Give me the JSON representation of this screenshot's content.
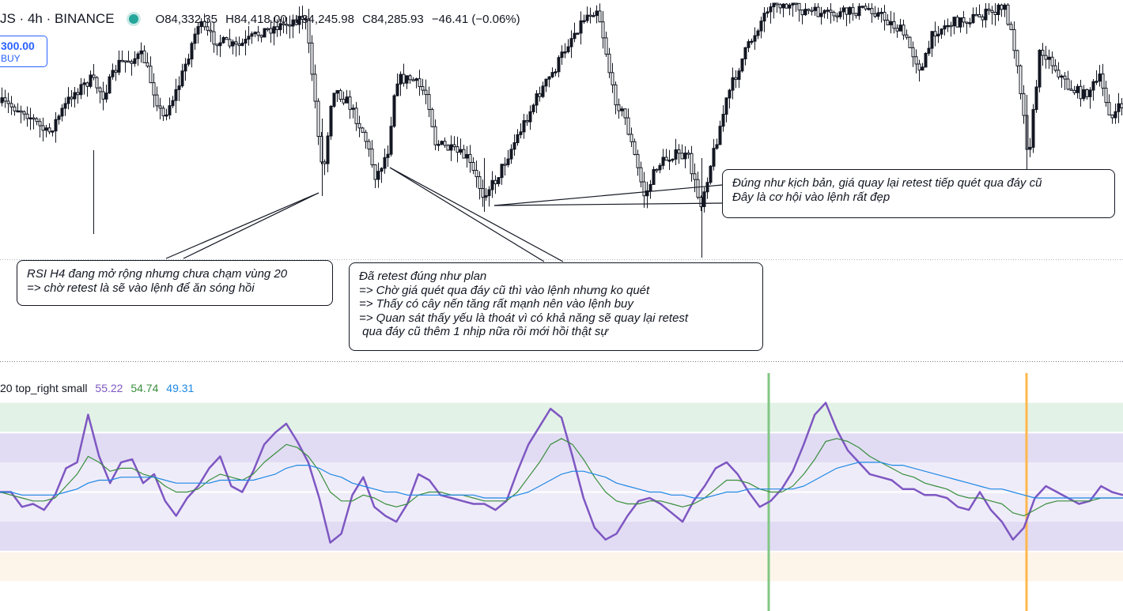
{
  "header": {
    "symbol": "JS · 4h · BINANCE",
    "ohlc": {
      "open": "O84,332.35",
      "high": "H84,418.00",
      "low": "L84,245.98",
      "close": "C84,285.93",
      "change": "−46.41 (−0.06%)"
    }
  },
  "trade_button": {
    "price": "300.00",
    "side": "BUY"
  },
  "notes": {
    "note1": [
      "RSI H4 đang mở rộng nhưng chưa chạm vùng 20",
      "=> chờ retest là sẽ vào lệnh để ăn sóng hồi"
    ],
    "note2": [
      "Đã retest đúng như plan",
      "=> Chờ giá quét qua đáy cũ thì vào lệnh nhưng ko quét",
      "=> Thấy có cây nến tăng rất mạnh nên vào lệnh buy",
      "=> Quan sát thấy yếu là thoát vì có khả năng sẽ quay lại retest",
      " qua đáy cũ thêm 1 nhịp nữa rồi mới hồi thật sự"
    ],
    "note3": [
      "Đúng như kịch bản, giá quay lại retest tiếp quét qua đáy cũ",
      "Đây là cơ hội vào lệnh rất đẹp"
    ]
  },
  "rsi_legend": {
    "label": "20 top_right small",
    "v1": "55.22",
    "v2": "54.74",
    "v3": "49.31"
  },
  "colors": {
    "candle": "#131722",
    "rsi": "#7e57c2",
    "rsi_ma": "#388e3c",
    "rsi_slow": "#1e88e5",
    "band_green": "#e3f2e6",
    "band_purple": "#e1dcf3",
    "band_light": "#efecf9",
    "band_orange": "#fdf5ea",
    "vline_green": "#81c784",
    "vline_orange": "#ffb74d"
  },
  "chart_data": [
    {
      "type": "candlestick",
      "title": "",
      "interval": "4h",
      "close_trend": [
        [
          0,
          130
        ],
        [
          30,
          140
        ],
        [
          60,
          170
        ],
        [
          90,
          120
        ],
        [
          115,
          100
        ],
        [
          130,
          120
        ],
        [
          150,
          80
        ],
        [
          180,
          70
        ],
        [
          205,
          150
        ],
        [
          225,
          110
        ],
        [
          250,
          30
        ],
        [
          270,
          50
        ],
        [
          300,
          60
        ],
        [
          330,
          40
        ],
        [
          360,
          30
        ],
        [
          385,
          20
        ],
        [
          395,
          100
        ],
        [
          408,
          225
        ],
        [
          420,
          110
        ],
        [
          440,
          130
        ],
        [
          460,
          170
        ],
        [
          475,
          225
        ],
        [
          490,
          190
        ],
        [
          500,
          100
        ],
        [
          520,
          100
        ],
        [
          540,
          120
        ],
        [
          550,
          180
        ],
        [
          570,
          190
        ],
        [
          590,
          200
        ],
        [
          610,
          245
        ],
        [
          625,
          230
        ],
        [
          640,
          200
        ],
        [
          660,
          160
        ],
        [
          680,
          120
        ],
        [
          700,
          90
        ],
        [
          720,
          50
        ],
        [
          740,
          20
        ],
        [
          755,
          10
        ],
        [
          765,
          60
        ],
        [
          775,
          120
        ],
        [
          790,
          150
        ],
        [
          805,
          210
        ],
        [
          815,
          250
        ],
        [
          830,
          210
        ],
        [
          850,
          195
        ],
        [
          870,
          200
        ],
        [
          885,
          260
        ],
        [
          900,
          200
        ],
        [
          920,
          120
        ],
        [
          940,
          70
        ],
        [
          960,
          30
        ],
        [
          975,
          0
        ],
        [
          1000,
          10
        ],
        [
          1050,
          20
        ],
        [
          1100,
          10
        ],
        [
          1140,
          40
        ],
        [
          1165,
          90
        ],
        [
          1180,
          40
        ],
        [
          1200,
          30
        ],
        [
          1240,
          20
        ],
        [
          1270,
          10
        ],
        [
          1285,
          70
        ],
        [
          1300,
          200
        ],
        [
          1315,
          60
        ],
        [
          1330,
          80
        ],
        [
          1350,
          110
        ],
        [
          1370,
          120
        ],
        [
          1390,
          100
        ],
        [
          1405,
          150
        ],
        [
          1420,
          130
        ]
      ]
    },
    {
      "type": "line",
      "title": "",
      "series": [
        {
          "name": "",
          "values": [
            50,
            50,
            45,
            46,
            44,
            49,
            58,
            60,
            76,
            62,
            53,
            60,
            61,
            53,
            56,
            47,
            42,
            48,
            52,
            58,
            62,
            52,
            50,
            57,
            66,
            70,
            73,
            67,
            60,
            48,
            33,
            36,
            49,
            55,
            45,
            42,
            40,
            46,
            56,
            54,
            49,
            48,
            47,
            46,
            46,
            44,
            47,
            57,
            66,
            72,
            78,
            75,
            62,
            48,
            38,
            34,
            36,
            42,
            47,
            48,
            46,
            43,
            40,
            47,
            52,
            58,
            60,
            56,
            50,
            45,
            47,
            51,
            57,
            66,
            76,
            80,
            71,
            64,
            60,
            56,
            55,
            54,
            51,
            51,
            49,
            49,
            48,
            45,
            44,
            50,
            44,
            40,
            34,
            38,
            48,
            52,
            50,
            48,
            46,
            47,
            52,
            50,
            49
          ]
        },
        {
          "name": "",
          "values": [
            50,
            49,
            48,
            47,
            47,
            48,
            52,
            56,
            62,
            60,
            57,
            58,
            58,
            56,
            55,
            52,
            50,
            50,
            51,
            54,
            56,
            55,
            54,
            56,
            60,
            63,
            66,
            65,
            62,
            57,
            50,
            47,
            47,
            49,
            48,
            46,
            45,
            46,
            49,
            50,
            50,
            49,
            49,
            48,
            47,
            47,
            47,
            50,
            55,
            60,
            66,
            68,
            66,
            61,
            55,
            50,
            47,
            46,
            46,
            47,
            47,
            46,
            45,
            46,
            48,
            51,
            54,
            54,
            53,
            51,
            50,
            50,
            52,
            56,
            61,
            67,
            68,
            67,
            65,
            62,
            60,
            58,
            56,
            55,
            53,
            52,
            51,
            49,
            48,
            48,
            47,
            46,
            43,
            42,
            44,
            46,
            47,
            47,
            47,
            47,
            48,
            48,
            48
          ]
        },
        {
          "name": "",
          "values": [
            50,
            50,
            49,
            49,
            49,
            49,
            50,
            51,
            53,
            54,
            54,
            55,
            55,
            55,
            55,
            54,
            53,
            53,
            53,
            53,
            54,
            54,
            54,
            54,
            55,
            56,
            58,
            59,
            59,
            58,
            56,
            55,
            53,
            52,
            51,
            50,
            50,
            49,
            49,
            49,
            49,
            49,
            49,
            49,
            48,
            48,
            48,
            49,
            50,
            52,
            54,
            56,
            57,
            57,
            56,
            55,
            53,
            52,
            51,
            50,
            50,
            49,
            49,
            48,
            48,
            49,
            50,
            50,
            51,
            51,
            51,
            51,
            51,
            52,
            54,
            56,
            58,
            59,
            60,
            60,
            60,
            59,
            59,
            58,
            57,
            56,
            55,
            54,
            53,
            52,
            51,
            51,
            50,
            49,
            48,
            48,
            48,
            48,
            48,
            48,
            48,
            48,
            48
          ]
        }
      ],
      "ylim": [
        10,
        90
      ],
      "bands": [
        [
          70,
          80
        ],
        [
          30,
          70
        ],
        [
          20,
          30
        ]
      ],
      "levels": [
        70,
        50,
        30
      ]
    }
  ]
}
